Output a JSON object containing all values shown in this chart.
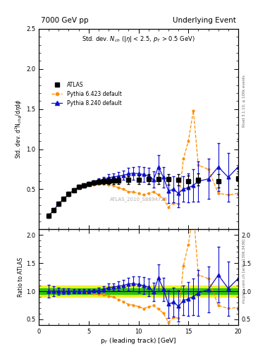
{
  "title_left": "7000 GeV pp",
  "title_right": "Underlying Event",
  "ylabel_main": "Std. dev. d$^2$N$_{chg}$/d$\\eta$d$\\phi$",
  "ylabel_ratio": "Ratio to ATLAS",
  "xlabel": "p$_{T}$ (leading track) [GeV]",
  "watermark": "ATLAS_2010_S8894728",
  "atlas_x": [
    1.0,
    1.5,
    2.0,
    2.5,
    3.0,
    3.5,
    4.0,
    4.5,
    5.0,
    5.5,
    6.0,
    6.5,
    7.0,
    7.5,
    8.0,
    9.0,
    10.0,
    11.0,
    12.0,
    13.0,
    14.0,
    15.0,
    16.0,
    18.0,
    20.0
  ],
  "atlas_y": [
    0.17,
    0.24,
    0.32,
    0.38,
    0.44,
    0.49,
    0.53,
    0.55,
    0.57,
    0.585,
    0.595,
    0.605,
    0.605,
    0.61,
    0.61,
    0.615,
    0.62,
    0.625,
    0.63,
    0.625,
    0.615,
    0.6,
    0.62,
    0.605,
    0.635
  ],
  "atlas_yerr": [
    0.025,
    0.025,
    0.025,
    0.025,
    0.025,
    0.025,
    0.025,
    0.025,
    0.025,
    0.025,
    0.03,
    0.035,
    0.04,
    0.04,
    0.045,
    0.05,
    0.055,
    0.06,
    0.065,
    0.065,
    0.07,
    0.075,
    0.075,
    0.08,
    0.09
  ],
  "p6_x": [
    1.0,
    1.5,
    2.0,
    2.5,
    3.0,
    3.5,
    4.0,
    4.5,
    5.0,
    5.5,
    6.0,
    6.5,
    7.0,
    7.5,
    8.0,
    8.5,
    9.0,
    9.5,
    10.0,
    10.5,
    11.0,
    11.5,
    12.0,
    12.5,
    13.0,
    13.5,
    14.0,
    14.5,
    15.0,
    15.5,
    16.0,
    17.0,
    18.0,
    19.0,
    20.0
  ],
  "p6_y": [
    0.17,
    0.24,
    0.32,
    0.38,
    0.44,
    0.49,
    0.53,
    0.545,
    0.555,
    0.56,
    0.565,
    0.565,
    0.555,
    0.545,
    0.52,
    0.5,
    0.47,
    0.465,
    0.45,
    0.43,
    0.45,
    0.47,
    0.43,
    0.38,
    0.28,
    0.33,
    0.32,
    0.88,
    1.1,
    1.48,
    0.8,
    0.75,
    0.45,
    0.43,
    0.45
  ],
  "p8_x": [
    1.0,
    1.5,
    2.0,
    2.5,
    3.0,
    3.5,
    4.0,
    4.5,
    5.0,
    5.5,
    6.0,
    6.5,
    7.0,
    7.5,
    8.0,
    8.5,
    9.0,
    9.5,
    10.0,
    10.5,
    11.0,
    11.5,
    12.0,
    12.5,
    13.0,
    13.5,
    14.0,
    14.5,
    15.0,
    15.5,
    16.0,
    17.0,
    18.0,
    19.0,
    20.0
  ],
  "p8_y": [
    0.17,
    0.24,
    0.32,
    0.38,
    0.44,
    0.49,
    0.53,
    0.55,
    0.57,
    0.59,
    0.605,
    0.625,
    0.645,
    0.655,
    0.665,
    0.675,
    0.695,
    0.7,
    0.695,
    0.685,
    0.67,
    0.62,
    0.78,
    0.65,
    0.48,
    0.5,
    0.45,
    0.505,
    0.52,
    0.55,
    0.6,
    0.63,
    0.78,
    0.65,
    0.78
  ],
  "p8_yerr": [
    0.02,
    0.02,
    0.02,
    0.02,
    0.02,
    0.02,
    0.02,
    0.02,
    0.02,
    0.02,
    0.03,
    0.03,
    0.04,
    0.04,
    0.05,
    0.06,
    0.07,
    0.08,
    0.09,
    0.09,
    0.1,
    0.1,
    0.15,
    0.13,
    0.15,
    0.16,
    0.17,
    0.16,
    0.18,
    0.2,
    0.25,
    0.25,
    0.3,
    0.3,
    0.35
  ],
  "ratio_green_band": 0.05,
  "ratio_yellow_band": 0.1,
  "ylim_main": [
    0.0,
    2.5
  ],
  "ylim_ratio": [
    0.4,
    2.1
  ],
  "xlim": [
    0,
    20
  ],
  "colors": {
    "atlas": "#000000",
    "p6": "#FF8C00",
    "p8": "#1010CC",
    "green_band": "#00BB00",
    "yellow_band": "#EEEE00"
  }
}
